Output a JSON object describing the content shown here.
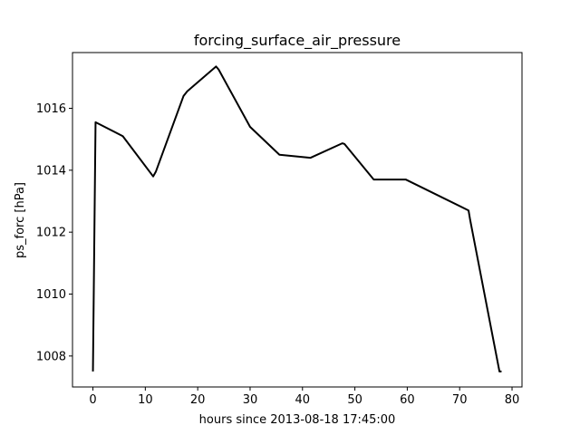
{
  "chart_data": {
    "type": "line",
    "title": "forcing_surface_air_pressure",
    "xlabel": "hours since 2013-08-18 17:45:00",
    "ylabel": "ps_forc [hPa]",
    "xlim": [
      -3.9,
      81.9
    ],
    "ylim": [
      1007.0,
      1017.8
    ],
    "xticks": [
      0,
      10,
      20,
      30,
      40,
      50,
      60,
      70,
      80
    ],
    "yticks": [
      1008,
      1010,
      1012,
      1014,
      1016
    ],
    "grid": false,
    "line_color": "#000000",
    "series": [
      {
        "x": [
          0.0,
          0.5,
          5.7,
          11.5,
          12.0,
          17.3,
          18.0,
          23.5,
          24.0,
          30.0,
          35.6,
          41.5,
          47.6,
          48.0,
          53.6,
          59.7,
          71.7,
          72.0,
          77.6,
          78.0
        ],
        "y": [
          1007.5,
          1015.55,
          1015.1,
          1013.8,
          1013.95,
          1016.4,
          1016.55,
          1017.35,
          1017.25,
          1015.4,
          1014.5,
          1014.4,
          1014.87,
          1014.85,
          1013.7,
          1013.7,
          1012.7,
          1012.4,
          1007.5,
          1007.5
        ]
      }
    ]
  }
}
